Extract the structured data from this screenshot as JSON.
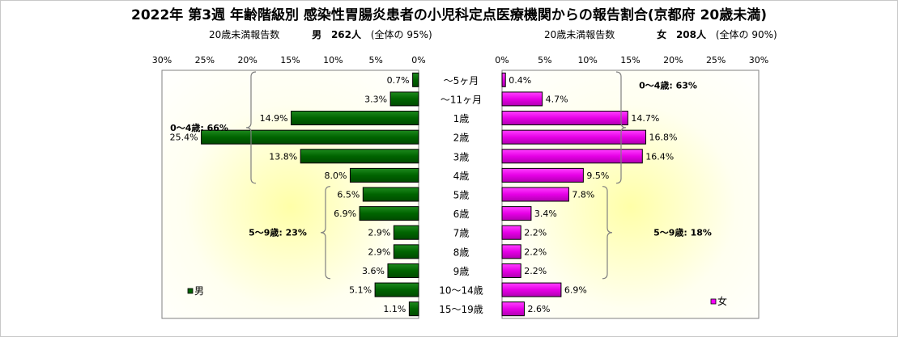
{
  "title": "2022年 第3週  年齢階級別 感染性胃腸炎患者の小児科定点医療機関からの報告割合(京都府 20歳未満)",
  "left_header": {
    "count_label": "20歳未満報告数",
    "sex": "男",
    "total": "262人",
    "share_text": "(全体の  95%)"
  },
  "right_header": {
    "count_label": "20歳未満報告数",
    "sex": "女",
    "total": "208人",
    "share_text": "(全体の  90%)"
  },
  "chart_data": {
    "type": "bar",
    "orientation": "horizontal",
    "layout": "population-pyramid",
    "categories": [
      "～5ヶ月",
      "～11ヶ月",
      "1歳",
      "2歳",
      "3歳",
      "4歳",
      "5歳",
      "6歳",
      "7歳",
      "8歳",
      "9歳",
      "10～14歳",
      "15～19歳"
    ],
    "xlim": [
      0,
      30
    ],
    "x_ticks": [
      "0%",
      "5%",
      "10%",
      "15%",
      "20%",
      "25%",
      "30%"
    ],
    "unit": "%",
    "series": [
      {
        "name": "男",
        "side": "left",
        "color": "#006400",
        "values": [
          0.7,
          3.3,
          14.9,
          25.4,
          13.8,
          8.0,
          6.5,
          6.9,
          2.9,
          2.9,
          3.6,
          5.1,
          1.1
        ],
        "labels": [
          "0.7%",
          "3.3%",
          "14.9%",
          "25.4%",
          "13.8%",
          "8.0%",
          "6.5%",
          "6.9%",
          "2.9%",
          "2.9%",
          "3.6%",
          "5.1%",
          "1.1%"
        ]
      },
      {
        "name": "女",
        "side": "right",
        "color": "#ff00ff",
        "values": [
          0.4,
          4.7,
          14.7,
          16.8,
          16.4,
          9.5,
          7.8,
          3.4,
          2.2,
          2.2,
          2.2,
          6.9,
          2.6
        ],
        "labels": [
          "0.4%",
          "4.7%",
          "14.7%",
          "16.8%",
          "16.4%",
          "9.5%",
          "7.8%",
          "3.4%",
          "2.2%",
          "2.2%",
          "2.2%",
          "6.9%",
          "2.6%"
        ]
      }
    ],
    "annotations": {
      "left": [
        {
          "text": "0～4歳: 66%",
          "from": 0,
          "to": 5
        },
        {
          "text": "5～9歳: 23%",
          "from": 6,
          "to": 10
        }
      ],
      "right": [
        {
          "text": "0～4歳: 63%",
          "from": 0,
          "to": 5
        },
        {
          "text": "5～9歳: 18%",
          "from": 6,
          "to": 10
        }
      ]
    },
    "plot_background": "gradient white to pale yellow",
    "legend": {
      "left": "bottom-left",
      "right": "bottom-right"
    }
  }
}
